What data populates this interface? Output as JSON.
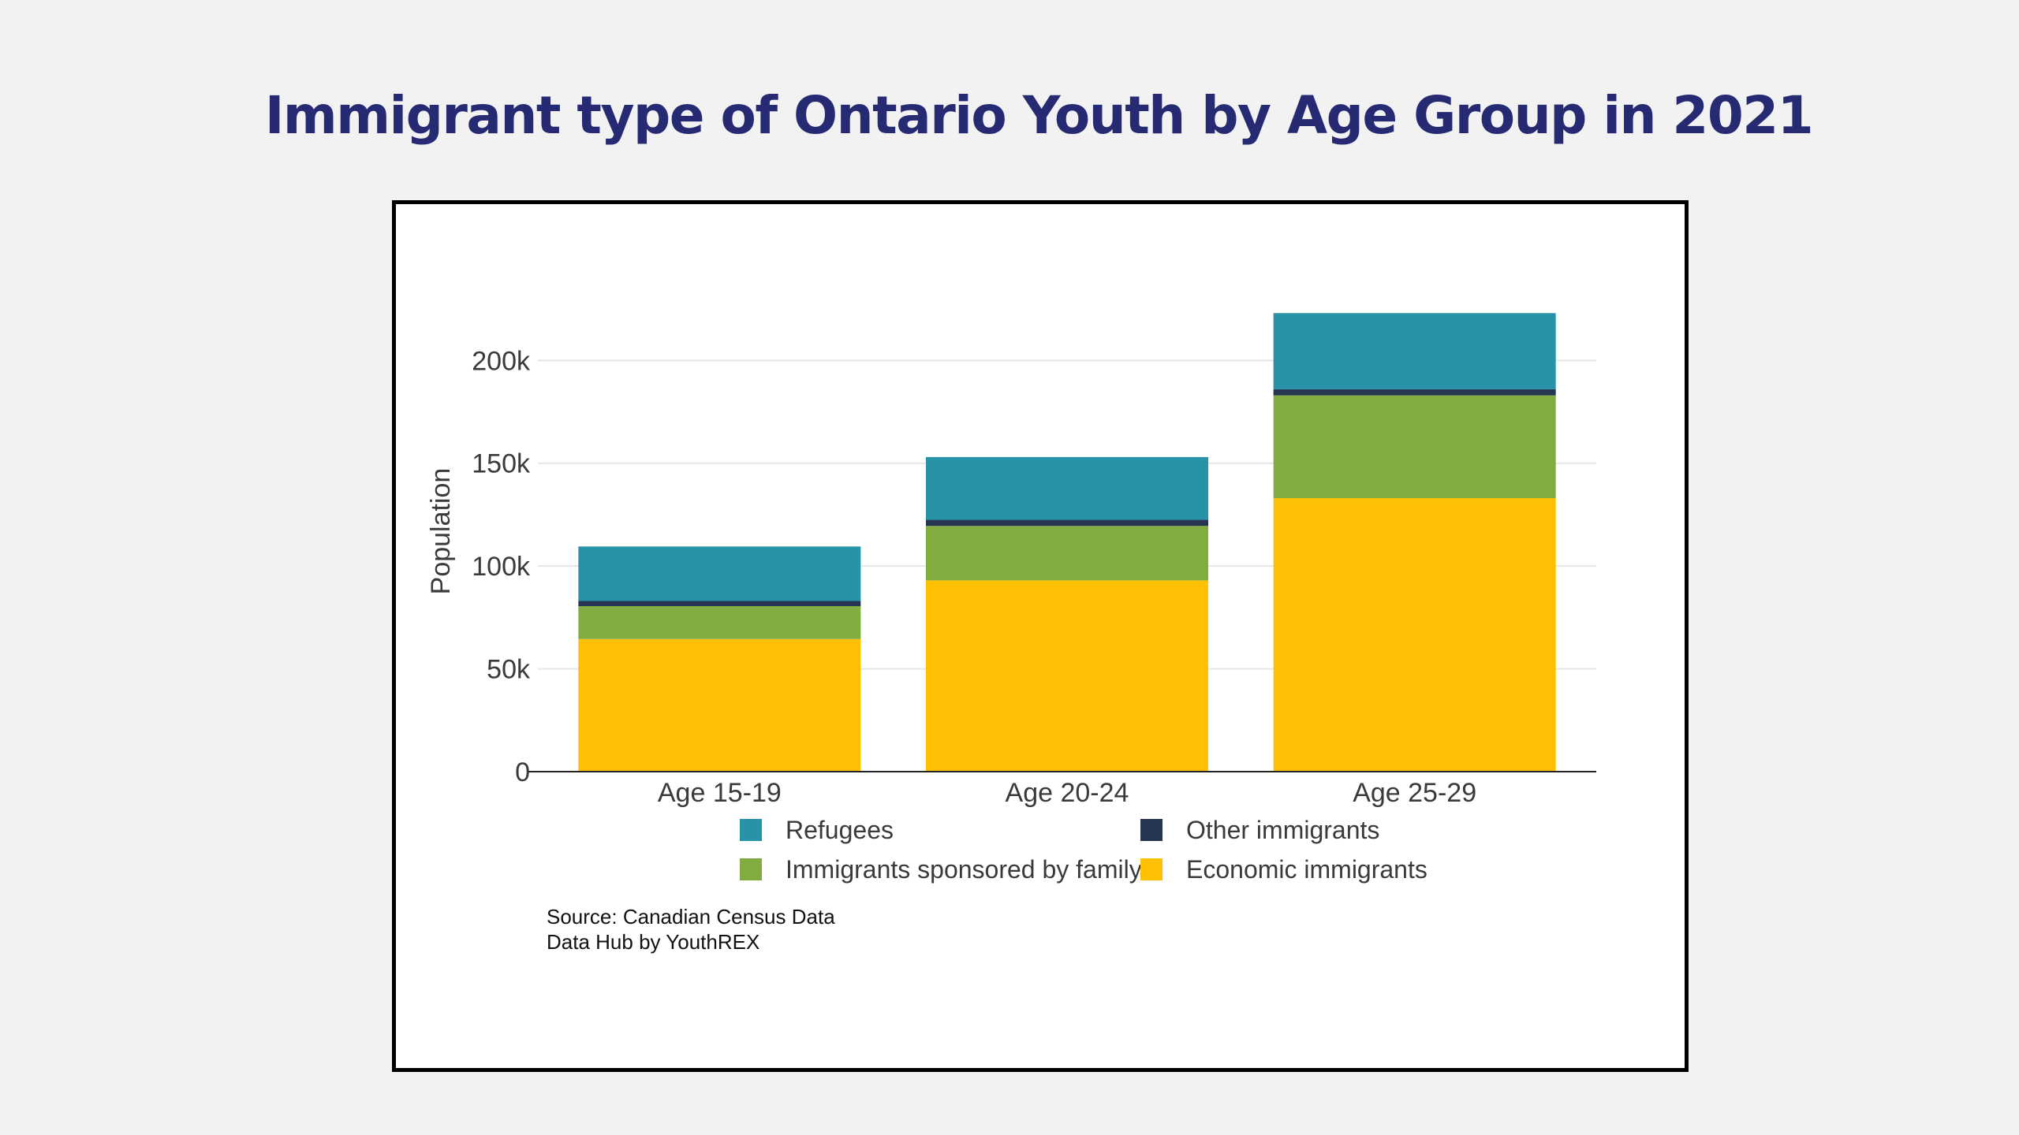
{
  "page": {
    "title": "Immigrant type of Ontario Youth by Age Group in 2021"
  },
  "chart_data": {
    "type": "bar",
    "stacked": true,
    "title": "Immigrant type of Ontario Youth by Age Group in 2021",
    "xlabel": "",
    "ylabel": "Population",
    "ylim": [
      0,
      230000
    ],
    "yticks": [
      0,
      50000,
      100000,
      150000,
      200000
    ],
    "ytick_labels": [
      "0",
      "50k",
      "100k",
      "150k",
      "200k"
    ],
    "grid": true,
    "legend_position": "bottom",
    "categories": [
      "Age 15-19",
      "Age 20-24",
      "Age 25-29"
    ],
    "series": [
      {
        "name": "Economic immigrants",
        "color": "#fdc002",
        "values": [
          64500,
          93000,
          133000
        ]
      },
      {
        "name": "Immigrants sponsored by family",
        "color": "#81ad40",
        "values": [
          16000,
          26500,
          50000
        ]
      },
      {
        "name": "Other immigrants",
        "color": "#253552",
        "values": [
          2500,
          3000,
          3000
        ]
      },
      {
        "name": "Refugees",
        "color": "#2793a6",
        "values": [
          26500,
          30500,
          37000
        ]
      }
    ],
    "legend_order": [
      "Refugees",
      "Other immigrants",
      "Immigrants sponsored by family",
      "Economic immigrants"
    ]
  },
  "source": {
    "line1": "Source: Canadian Census Data",
    "line2": "Data Hub by YouthREX"
  }
}
